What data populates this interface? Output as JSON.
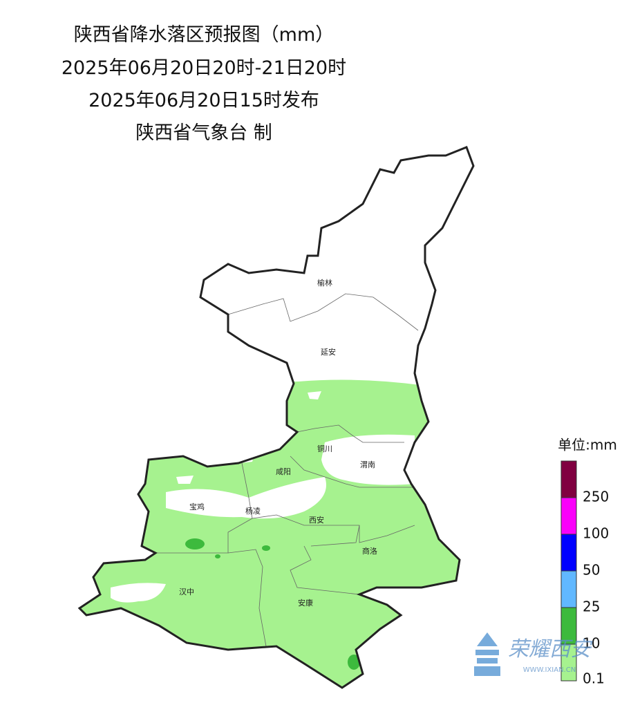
{
  "header": {
    "title": "陕西省降水落区预报图（mm）",
    "period": "2025年06月20日20时-21日20时",
    "issued": "2025年06月20日15时发布",
    "producer": "陕西省气象台 制"
  },
  "cities": [
    "榆林",
    "延安",
    "铜川",
    "渭南",
    "咸阳",
    "宝鸡",
    "杨凌",
    "西安",
    "商洛",
    "汉中",
    "安康"
  ],
  "legend": {
    "title": "单位:mm",
    "bins": [
      {
        "color": "#a6f28f"
      },
      {
        "color": "#3dba3d"
      },
      {
        "color": "#61b8ff"
      },
      {
        "color": "#0000ff"
      },
      {
        "color": "#fa00fa"
      },
      {
        "color": "#800040"
      }
    ],
    "labels": [
      "0.1",
      "10",
      "25",
      "50",
      "100",
      "250"
    ]
  },
  "watermark": {
    "name": "荣耀西安",
    "url": "WWW.IXIAN.CN"
  }
}
